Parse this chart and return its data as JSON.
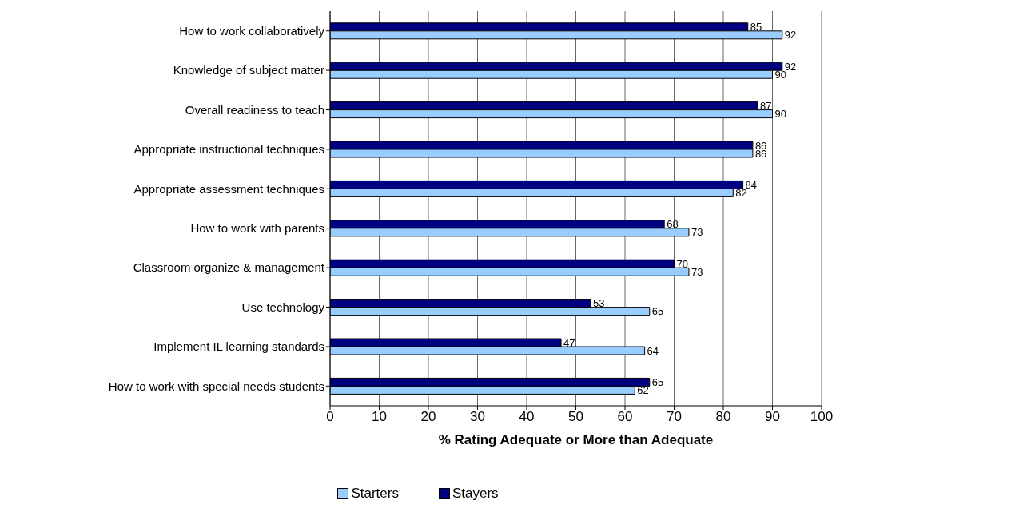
{
  "chart_data": {
    "type": "bar",
    "orientation": "horizontal",
    "xlabel": "% Rating Adequate or More than Adequate",
    "categories": [
      "How to work collaboratively",
      "Knowledge of subject matter",
      "Overall readiness to teach",
      "Appropriate instructional techniques",
      "Appropriate assessment techniques",
      "How to work with parents",
      "Classroom organize & management",
      "Use technology",
      "Implement IL learning standards",
      "How to work with special needs students"
    ],
    "series": [
      {
        "name": "Starters",
        "color": "#99ccff",
        "values": [
          92,
          90,
          90,
          86,
          82,
          73,
          73,
          65,
          64,
          62
        ]
      },
      {
        "name": "Stayers",
        "color": "#000080",
        "values": [
          85,
          92,
          87,
          86,
          84,
          68,
          70,
          53,
          47,
          65
        ]
      }
    ],
    "xlim": [
      0,
      100
    ],
    "xticks": [
      0,
      10,
      20,
      30,
      40,
      50,
      60,
      70,
      80,
      90,
      100
    ],
    "grid": "x",
    "legend": "bottom",
    "data_labels": true
  }
}
